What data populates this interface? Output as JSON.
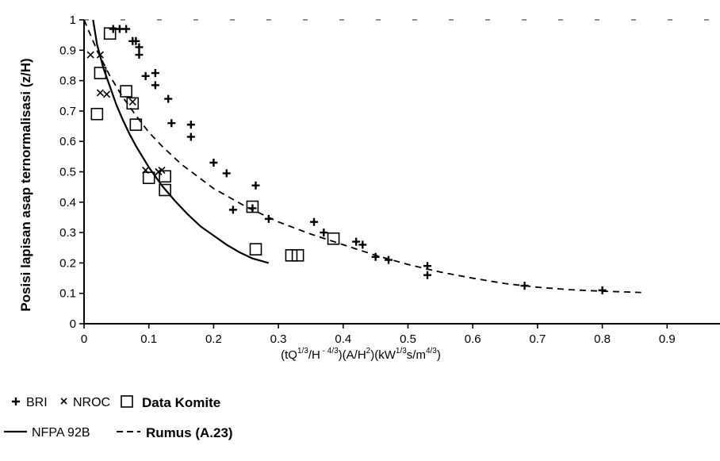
{
  "chart_data": {
    "type": "scatter",
    "ylabel": "Posisi lapisan asap ternormalisasi  (z/H)",
    "xlabel": {
      "open": "(tQ",
      "sup1": "1/3",
      "mid1": "/H",
      "sup2": " - 4/3",
      "mid2": ")(A/H",
      "sup3": "2",
      "mid3": ")(kW",
      "sup4": "1/3",
      "mid4": "s/m",
      "sup5": "4/3",
      "close": ")"
    },
    "xlim": [
      0,
      1.0
    ],
    "ylim": [
      0,
      1
    ],
    "xticks": [
      0,
      0.1,
      0.2,
      0.3,
      0.4,
      0.5,
      0.6,
      0.7,
      0.8,
      0.9
    ],
    "xtick_labels": [
      "0",
      "0.1",
      "0.2",
      "0.3",
      "0.4",
      "0.5",
      "0.6",
      "0.7",
      "0.8",
      "0.9"
    ],
    "yticks": [
      0,
      0.1,
      0.2,
      0.3,
      0.4,
      0.5,
      0.6,
      0.7,
      0.8,
      0.9,
      1
    ],
    "ytick_labels": [
      "0",
      "0.1",
      "0.2",
      "0.3",
      "0.4",
      "0.5",
      "0.6",
      "0.7",
      "0.8",
      "0.9",
      "1"
    ],
    "series": [
      {
        "name": "BRI",
        "marker": "plus",
        "points": [
          [
            0.045,
            0.97
          ],
          [
            0.055,
            0.97
          ],
          [
            0.065,
            0.97
          ],
          [
            0.075,
            0.93
          ],
          [
            0.08,
            0.93
          ],
          [
            0.085,
            0.91
          ],
          [
            0.085,
            0.885
          ],
          [
            0.095,
            0.815
          ],
          [
            0.11,
            0.825
          ],
          [
            0.11,
            0.785
          ],
          [
            0.13,
            0.74
          ],
          [
            0.135,
            0.66
          ],
          [
            0.165,
            0.655
          ],
          [
            0.165,
            0.615
          ],
          [
            0.2,
            0.53
          ],
          [
            0.22,
            0.495
          ],
          [
            0.23,
            0.375
          ],
          [
            0.26,
            0.38
          ],
          [
            0.265,
            0.455
          ],
          [
            0.285,
            0.345
          ],
          [
            0.355,
            0.335
          ],
          [
            0.37,
            0.3
          ],
          [
            0.42,
            0.27
          ],
          [
            0.43,
            0.26
          ],
          [
            0.45,
            0.22
          ],
          [
            0.47,
            0.21
          ],
          [
            0.53,
            0.19
          ],
          [
            0.53,
            0.16
          ],
          [
            0.68,
            0.125
          ],
          [
            0.8,
            0.11
          ]
        ]
      },
      {
        "name": "NROC",
        "marker": "cross",
        "points": [
          [
            0.01,
            0.885
          ],
          [
            0.025,
            0.885
          ],
          [
            0.025,
            0.76
          ],
          [
            0.035,
            0.755
          ],
          [
            0.075,
            0.73
          ],
          [
            0.095,
            0.505
          ],
          [
            0.115,
            0.5
          ],
          [
            0.12,
            0.505
          ]
        ]
      },
      {
        "name": "Data Komite",
        "marker": "square",
        "points": [
          [
            0.04,
            0.955
          ],
          [
            0.025,
            0.825
          ],
          [
            0.065,
            0.765
          ],
          [
            0.075,
            0.725
          ],
          [
            0.08,
            0.655
          ],
          [
            0.02,
            0.69
          ],
          [
            0.1,
            0.48
          ],
          [
            0.125,
            0.44
          ],
          [
            0.125,
            0.485
          ],
          [
            0.26,
            0.385
          ],
          [
            0.265,
            0.245
          ],
          [
            0.32,
            0.225
          ],
          [
            0.33,
            0.225
          ],
          [
            0.385,
            0.28
          ]
        ]
      },
      {
        "name": "NFPA 92B",
        "style": "solid",
        "points": [
          [
            0.014,
            1.0
          ],
          [
            0.02,
            0.92
          ],
          [
            0.03,
            0.84
          ],
          [
            0.04,
            0.78
          ],
          [
            0.05,
            0.72
          ],
          [
            0.06,
            0.67
          ],
          [
            0.07,
            0.625
          ],
          [
            0.08,
            0.585
          ],
          [
            0.09,
            0.55
          ],
          [
            0.1,
            0.515
          ],
          [
            0.12,
            0.455
          ],
          [
            0.14,
            0.405
          ],
          [
            0.16,
            0.36
          ],
          [
            0.18,
            0.32
          ],
          [
            0.2,
            0.29
          ],
          [
            0.22,
            0.26
          ],
          [
            0.24,
            0.235
          ],
          [
            0.26,
            0.215
          ],
          [
            0.285,
            0.2
          ]
        ]
      },
      {
        "name": "Rumus (A.23)",
        "style": "dashed",
        "points": [
          [
            0.0,
            1.0
          ],
          [
            0.02,
            0.9
          ],
          [
            0.04,
            0.815
          ],
          [
            0.06,
            0.745
          ],
          [
            0.08,
            0.685
          ],
          [
            0.1,
            0.63
          ],
          [
            0.12,
            0.585
          ],
          [
            0.15,
            0.525
          ],
          [
            0.2,
            0.445
          ],
          [
            0.25,
            0.385
          ],
          [
            0.3,
            0.335
          ],
          [
            0.35,
            0.295
          ],
          [
            0.4,
            0.26
          ],
          [
            0.45,
            0.225
          ],
          [
            0.5,
            0.195
          ],
          [
            0.55,
            0.17
          ],
          [
            0.6,
            0.15
          ],
          [
            0.65,
            0.132
          ],
          [
            0.7,
            0.12
          ],
          [
            0.75,
            0.112
          ],
          [
            0.8,
            0.107
          ],
          [
            0.86,
            0.103
          ]
        ]
      }
    ],
    "legend": {
      "placement": "bottom-left",
      "rows": [
        [
          {
            "label": "BRI",
            "marker": "plus"
          },
          {
            "label": "NROC",
            "marker": "cross"
          },
          {
            "label": "Data Komite",
            "marker": "square",
            "bold": true
          }
        ],
        [
          {
            "label": "NFPA 92B",
            "marker": "solid-line"
          },
          {
            "label": "Rumus (A.23)",
            "marker": "dashed-line",
            "bold": true
          }
        ]
      ]
    }
  }
}
